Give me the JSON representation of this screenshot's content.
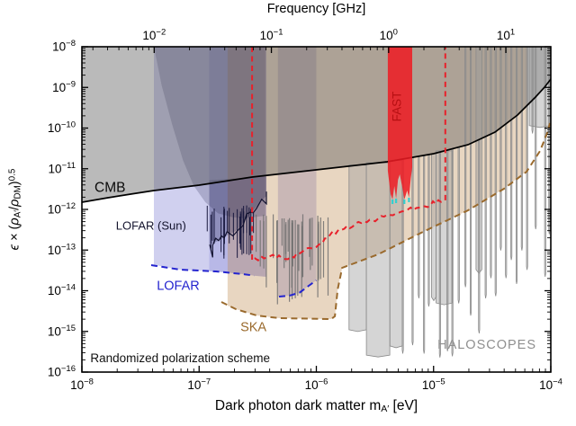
{
  "chart_data": {
    "type": "area",
    "description": "Dark photon dark matter exclusion / sensitivity plot (log-log)",
    "x_axis": {
      "label": "Dark photon dark matter mA′ [eV]",
      "label_parts": [
        {
          "t": "Dark photon dark matter m"
        },
        {
          "t": "A′",
          "sub": true
        },
        {
          "t": " [eV]"
        }
      ],
      "scale": "log",
      "min": 1e-08,
      "max": 0.0001,
      "tick_exponents": [
        -8,
        -7,
        -6,
        -5,
        -4
      ]
    },
    "top_axis": {
      "label": "Frequency [GHz]",
      "scale": "log",
      "unit": "GHz",
      "tick_exponents": [
        -2,
        -1,
        0,
        1
      ],
      "ev_per_ghz": 4.1357e-06
    },
    "y_axis": {
      "label": "ϵ × (ρA′/ρDM)^0.5",
      "label_parts": [
        {
          "t": "ϵ",
          "i": true
        },
        {
          "t": " × ("
        },
        {
          "t": "ρ",
          "i": true
        },
        {
          "t": "A′",
          "sub": true
        },
        {
          "t": "/"
        },
        {
          "t": "ρ",
          "i": true
        },
        {
          "t": "DM",
          "sub": true
        },
        {
          "t": ")"
        },
        {
          "t": "0.5",
          "sup": true
        }
      ],
      "scale": "log",
      "min": 1e-16,
      "max": 1e-08,
      "tick_exponents": [
        -8,
        -9,
        -10,
        -11,
        -12,
        -13,
        -14,
        -15,
        -16
      ]
    },
    "grid": false,
    "legend": "none (inline annotations)",
    "regions": [
      {
        "name": "lofar-lba-band",
        "color": "#6565cb",
        "opacity": 0.3,
        "m1": 4.11e-08,
        "m2": 3.75e-07,
        "bottom": [
          [
            4.11e-08,
            4.3e-14
          ],
          [
            6.87e-08,
            3.3e-14
          ],
          [
            1.39e-07,
            2.98e-14
          ],
          [
            2.37e-07,
            2.56e-14
          ],
          [
            2.95e-07,
            2.35e-14
          ],
          [
            3.75e-07,
            2.2e-14
          ]
        ]
      },
      {
        "name": "lofar-lba-core-band",
        "color": "#5050c0",
        "opacity": 0.18,
        "m1": 1.22e-07,
        "m2": 3.75e-07,
        "bottom": [
          [
            1.22e-07,
            3e-14
          ],
          [
            2.37e-07,
            2.56e-14
          ],
          [
            2.95e-07,
            2.35e-14
          ],
          [
            3.75e-07,
            2.2e-14
          ]
        ]
      },
      {
        "name": "lofar-hba-band",
        "color": "#6565cb",
        "opacity": 0.3,
        "m1": 4.7e-07,
        "m2": 1e-06,
        "bottom": [
          [
            4.7e-07,
            7.2e-15
          ],
          [
            5.9e-07,
            7.6e-15
          ],
          [
            7.2e-07,
            9e-15
          ],
          [
            8.6e-07,
            1.32e-14
          ],
          [
            1e-06,
            1.8e-14
          ]
        ]
      },
      {
        "name": "ska-band",
        "color": "#bc8648",
        "opacity": 0.34,
        "m1": 1.75e-07,
        "m2": 6.3e-05,
        "bottom": [
          [
            1.75e-07,
            4.3e-15
          ],
          [
            2.06e-07,
            3.52e-15
          ],
          [
            3.09e-07,
            2.47e-15
          ],
          [
            4.81e-07,
            2.12e-15
          ],
          [
            1.34e-06,
            2.01e-15
          ],
          [
            1.44e-06,
            2.36e-15
          ],
          [
            1.52e-06,
            1.08e-14
          ],
          [
            1.66e-06,
            3.66e-14
          ],
          [
            3.36e-06,
            7.85e-14
          ],
          [
            8.13e-06,
            2.8e-13
          ],
          [
            1.97e-05,
            9.5e-13
          ],
          [
            3.99e-05,
            3.22e-12
          ],
          [
            6.3e-05,
            9e-12
          ]
        ]
      },
      {
        "name": "lofar-sun-upper",
        "color": "#16163e",
        "opacity": 0.2,
        "close_to_top": true,
        "outline": [
          [
            4.12e-08,
            1e-08
          ],
          [
            4.8e-08,
            1.1e-09
          ],
          [
            5.9e-08,
            1.2e-10
          ],
          [
            7.3e-08,
            1.6e-11
          ],
          [
            9e-08,
            3.8e-12
          ],
          [
            1.13e-07,
            1.5e-12
          ],
          [
            1.45e-07,
            8e-13
          ],
          [
            1.9e-07,
            6.5e-13
          ],
          [
            2.4e-07,
            6e-13
          ],
          [
            3e-07,
            6.5e-13
          ],
          [
            3.67e-07,
            7e-13
          ]
        ]
      },
      {
        "name": "lofar-sun-lower",
        "color": "#16163e",
        "opacity": 0.26,
        "closed": true,
        "outline": [
          [
            1.22e-07,
            5.2e-12
          ],
          [
            1.22e-07,
            1.37e-13
          ],
          [
            1.47e-07,
            1.69e-13
          ],
          [
            1.73e-07,
            2.29e-13
          ],
          [
            2.06e-07,
            2.95e-13
          ],
          [
            2.37e-07,
            4.67e-13
          ],
          [
            2.72e-07,
            7.76e-13
          ],
          [
            3.08e-07,
            1.16e-12
          ],
          [
            3.42e-07,
            1.66e-12
          ],
          [
            3.75e-07,
            2.14e-12
          ],
          [
            3.75e-07,
            6.5e-12
          ]
        ]
      }
    ],
    "series": [
      {
        "name": "cmb-bound",
        "style": "solid",
        "color": "#000000",
        "width": 1.7,
        "fill": "#5a5a5a",
        "fill_opacity": 0.42,
        "fill_side": "above",
        "points": [
          [
            1e-08,
            1.5e-12
          ],
          [
            1.67e-08,
            1.94e-12
          ],
          [
            2.6e-08,
            2.37e-12
          ],
          [
            4.11e-08,
            2.91e-12
          ],
          [
            1e-07,
            3.95e-12
          ],
          [
            2.83e-07,
            6.25e-12
          ],
          [
            9.91e-07,
            9.38e-12
          ],
          [
            4.01e-06,
            1.48e-11
          ],
          [
            1e-05,
            2.34e-11
          ],
          [
            1.97e-05,
            3.9e-11
          ],
          [
            3.34e-05,
            7.96e-11
          ],
          [
            5.2e-05,
            2.09e-10
          ],
          [
            7.4e-05,
            5.78e-10
          ],
          [
            8.83e-05,
            1.01e-09
          ],
          [
            0.0001,
            1.6e-09
          ]
        ]
      },
      {
        "name": "lofar-sun-limit",
        "style": "noisy",
        "color": "#10102e",
        "width": 1.2,
        "jitter": 5,
        "spike_prob": 0.07,
        "spike_amp": 20,
        "seed": 3,
        "points": [
          [
            1.23e-07,
            1.37e-13
          ],
          [
            1.47e-07,
            1.69e-13
          ],
          [
            1.73e-07,
            2.29e-13
          ],
          [
            2.06e-07,
            2.95e-13
          ],
          [
            2.37e-07,
            4.67e-13
          ],
          [
            2.72e-07,
            7.76e-13
          ],
          [
            3.08e-07,
            1.16e-12
          ],
          [
            3.42e-07,
            1.66e-12
          ],
          [
            3.75e-07,
            2.14e-12
          ]
        ]
      },
      {
        "name": "lofar-projection",
        "style": "dashed",
        "color": "#2424cf",
        "width": 2,
        "points": [
          [
            3.9e-08,
            4.27e-14
          ],
          [
            6.87e-08,
            3.3e-14
          ],
          [
            1.39e-07,
            2.98e-14
          ],
          [
            2.37e-07,
            2.56e-14
          ],
          [
            2.95e-07,
            2.35e-14
          ]
        ]
      },
      {
        "name": "lofar-hba-projection",
        "style": "dashed",
        "color": "#2424cf",
        "width": 2,
        "points": [
          [
            4.8e-07,
            7.2e-15
          ],
          [
            5.9e-07,
            7.6e-15
          ],
          [
            7.2e-07,
            9e-15
          ],
          [
            8.6e-07,
            1.32e-14
          ],
          [
            1e-06,
            1.8e-14
          ]
        ]
      },
      {
        "name": "ska-projection",
        "style": "dashed",
        "color": "#9a6a2d",
        "width": 2,
        "points": [
          [
            1.55e-07,
            5.29e-15
          ],
          [
            2.06e-07,
            3.52e-15
          ],
          [
            3.09e-07,
            2.47e-15
          ],
          [
            4.81e-07,
            2.12e-15
          ],
          [
            1.34e-06,
            2.01e-15
          ],
          [
            1.44e-06,
            2.36e-15
          ],
          [
            1.52e-06,
            1.08e-14
          ],
          [
            1.66e-06,
            3.66e-14
          ],
          [
            3.36e-06,
            7.85e-14
          ],
          [
            8.13e-06,
            2.8e-13
          ],
          [
            1.97e-05,
            9.5e-13
          ],
          [
            3.99e-05,
            3.22e-12
          ],
          [
            6.21e-05,
            8.47e-12
          ],
          [
            8.09e-05,
            2.73e-11
          ],
          [
            9.32e-05,
            7.55e-11
          ],
          [
            9.82e-05,
            1.32e-10
          ]
        ]
      },
      {
        "name": "fast-projection",
        "style": "dashed-noisy",
        "color": "#e8212b",
        "width": 2,
        "jitter": 2.5,
        "seed": 9,
        "left_m": 2.83e-07,
        "right_m": 1.26e-05,
        "points": [
          [
            2.83e-07,
            5.51e-14
          ],
          [
            4.03e-07,
            7.46e-14
          ],
          [
            5.73e-07,
            6.09e-14
          ],
          [
            8.16e-07,
            1.07e-13
          ],
          [
            1.06e-06,
            1.37e-13
          ],
          [
            1.39e-06,
            2.66e-13
          ],
          [
            2.16e-06,
            4.21e-13
          ],
          [
            3.36e-06,
            6.01e-13
          ],
          [
            5.7e-06,
            9.5e-13
          ],
          [
            8.87e-06,
            1.29e-12
          ],
          [
            1.22e-05,
            1.66e-12
          ]
        ]
      }
    ],
    "fast_band": {
      "m1": 4.07e-06,
      "m2": 6.57e-06,
      "color": "#ee1b23",
      "opacity": 0.86,
      "bottom": [
        [
          4.07e-06,
          8.91e-12
        ],
        [
          4.3e-06,
          2.38e-12
        ],
        [
          4.46e-06,
          1.75e-12
        ],
        [
          4.63e-06,
          3.76e-12
        ],
        [
          4.79e-06,
          1.84e-12
        ],
        [
          4.97e-06,
          5.36e-12
        ],
        [
          5.15e-06,
          7.28e-12
        ],
        [
          5.44e-06,
          3.22e-12
        ],
        [
          5.63e-06,
          1.75e-12
        ],
        [
          5.95e-06,
          2.91e-12
        ],
        [
          6.17e-06,
          1.94e-12
        ],
        [
          6.4e-06,
          5.93e-12
        ],
        [
          6.57e-06,
          1.09e-11
        ]
      ],
      "tips": [
        [
          4.46e-06,
          1.75e-12
        ],
        [
          4.79e-06,
          1.84e-12
        ],
        [
          5.63e-06,
          1.75e-12
        ],
        [
          6.17e-06,
          1.94e-12
        ]
      ],
      "tip_color": "#35cfcf"
    },
    "haloscope_bars": [
      {
        "m1": 1.9e-06,
        "m2": 2.67e-06,
        "eps": 1.1e-15,
        "top": "line"
      },
      {
        "m1": 2.67e-06,
        "m2": 4.23e-06,
        "eps": 2.6e-16,
        "top": "line"
      },
      {
        "m1": 4.25e-06,
        "m2": 5.4e-06,
        "eps": 4.4e-16,
        "top": "line"
      },
      {
        "m1": 5.4e-06,
        "m2": 5.5e-06,
        "eps": 3.5e-16,
        "top": "line"
      },
      {
        "m1": 6.55e-06,
        "m2": 6.65e-06,
        "eps": 5.6e-16,
        "top": "line"
      },
      {
        "m1": 7.4e-06,
        "m2": 7.5e-06,
        "eps": 8e-15,
        "top": "line"
      },
      {
        "m1": 8.2e-06,
        "m2": 8.35e-06,
        "eps": 3.5e-16,
        "top": "line"
      },
      {
        "m1": 9e-06,
        "m2": 9.15e-06,
        "eps": 5e-15,
        "top": "line"
      },
      {
        "m1": 9.6e-06,
        "m2": 1.05e-05,
        "eps": 7e-15,
        "top": "line"
      },
      {
        "m1": 1.05e-05,
        "m2": 1.45e-05,
        "eps": 5e-15,
        "top": "line"
      },
      {
        "m1": 1.12e-05,
        "m2": 1.14e-05,
        "eps": 2.8e-16,
        "top": "line"
      },
      {
        "m1": 1.3e-05,
        "m2": 1.32e-05,
        "eps": 4e-16,
        "top": "line"
      },
      {
        "m1": 1.43e-05,
        "m2": 1.45e-05,
        "eps": 3e-16,
        "top": "line"
      },
      {
        "m1": 1.62e-05,
        "m2": 1.66e-05,
        "eps": 6e-15,
        "top": "line"
      },
      {
        "m1": 1.85e-05,
        "m2": 1.88e-05,
        "eps": 1.5e-14,
        "top": "top"
      },
      {
        "m1": 2.05e-05,
        "m2": 2.08e-05,
        "eps": 3e-15,
        "top": "top"
      },
      {
        "m1": 2.3e-05,
        "m2": 2.58e-05,
        "eps": 3.3e-14,
        "top": "top"
      },
      {
        "m1": 2.42e-05,
        "m2": 2.45e-05,
        "eps": 1.1e-15,
        "top": "line"
      },
      {
        "m1": 2.75e-05,
        "m2": 2.79e-05,
        "eps": 8e-15,
        "top": "top"
      },
      {
        "m1": 3.05e-05,
        "m2": 3.09e-05,
        "eps": 2.5e-14,
        "top": "top"
      },
      {
        "m1": 3.35e-05,
        "m2": 3.39e-05,
        "eps": 9e-15,
        "top": "top"
      },
      {
        "m1": 3.7e-05,
        "m2": 3.74e-05,
        "eps": 1.2e-13,
        "top": "top"
      },
      {
        "m1": 4.1e-05,
        "m2": 4.15e-05,
        "eps": 2.5e-14,
        "top": "top"
      },
      {
        "m1": 4.55e-05,
        "m2": 4.6e-05,
        "eps": 7e-14,
        "top": "top"
      },
      {
        "m1": 5.05e-05,
        "m2": 5.1e-05,
        "eps": 1.8e-14,
        "top": "top"
      },
      {
        "m1": 5.6e-05,
        "m2": 5.65e-05,
        "eps": 1.2e-13,
        "top": "top"
      },
      {
        "m1": 6.2e-05,
        "m2": 6.26e-05,
        "eps": 4e-14,
        "top": "top"
      },
      {
        "m1": 6.55e-05,
        "m2": 0.0001,
        "eps": 1.15e-10,
        "top": "top"
      },
      {
        "m1": 6.9e-05,
        "m2": 6.93e-05,
        "eps": 9e-11,
        "top": "top"
      },
      {
        "m1": 7.35e-05,
        "m2": 7.42e-05,
        "eps": 4e-13,
        "top": "top"
      },
      {
        "m1": 8.85e-05,
        "m2": 8.95e-05,
        "eps": 2.7e-14,
        "top": "top"
      },
      {
        "m1": 9.6e-05,
        "m2": 9.65e-05,
        "eps": 3e-13,
        "top": "top"
      }
    ],
    "noise_forests": [
      {
        "name": "solar-radio-noise",
        "m1": 1.16e-07,
        "m2": 3e-07,
        "top_eps": 9e-13,
        "min_eps": 6e-14,
        "max_eps": 3e-13,
        "n": 24,
        "color": "#16163c",
        "w": 1.1,
        "o": 0.9,
        "seed": 7
      },
      {
        "name": "radio-noise",
        "m1": 2.95e-07,
        "m2": 1.3e-06,
        "top_eps": 5.5e-13,
        "min_eps": 4.5e-15,
        "max_eps": 1.6e-13,
        "n": 32,
        "color": "#707070",
        "w": 1.2,
        "o": 0.85,
        "seed": 11
      }
    ],
    "annotations": [
      {
        "id": "cmb-label",
        "text": "CMB",
        "m": 1.28e-08,
        "eps": 3.6e-12,
        "color": "#0a0a0a",
        "size": 15.5,
        "weight": 500
      },
      {
        "id": "lofar-sun-label",
        "text": "LOFAR (Sun)",
        "m": 1.95e-08,
        "eps": 4e-13,
        "color": "#14142e",
        "size": 13
      },
      {
        "id": "lofar-label",
        "text": "LOFAR",
        "m": 4.35e-08,
        "eps": 1.35e-14,
        "color": "#2424cf",
        "size": 14.5
      },
      {
        "id": "ska-label",
        "text": "SKA",
        "m": 2.25e-07,
        "eps": 1.3e-15,
        "color": "#9a6a2d",
        "size": 14.5
      },
      {
        "id": "fast-label",
        "text": "FAST",
        "m": 4.85e-06,
        "eps": 3.4e-10,
        "color": "#b60f12",
        "size": 13.5,
        "rotate": -90
      },
      {
        "id": "haloscopes-label",
        "text": "HALOSCOPES",
        "m": 1.08e-05,
        "eps": 4.9e-16,
        "color": "#8f8f8f",
        "size": 14.5,
        "ls": 1
      },
      {
        "id": "scheme-note",
        "text": "Randomized polarization scheme",
        "m": 1.18e-08,
        "eps": 2.2e-16,
        "color": "#111111",
        "size": 13.5
      }
    ]
  }
}
